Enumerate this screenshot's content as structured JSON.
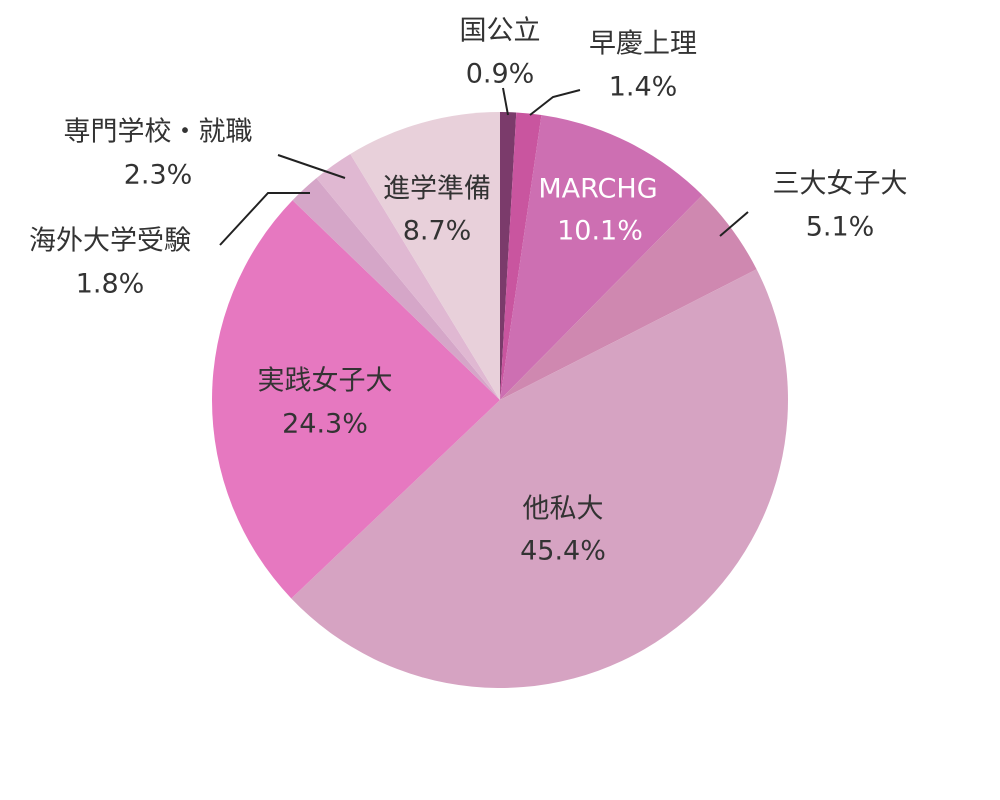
{
  "chart_data": {
    "type": "pie",
    "categories": [
      "国公立",
      "早慶上理",
      "MARCHG",
      "三大女子大",
      "他私大",
      "実践女子大",
      "海外大学受験",
      "専門学校・就職",
      "進学準備"
    ],
    "values": [
      0.9,
      1.4,
      10.1,
      5.1,
      45.4,
      24.3,
      1.8,
      2.3,
      8.7
    ],
    "value_labels": [
      "0.9%",
      "1.4%",
      "10.1%",
      "5.1%",
      "45.4%",
      "24.3%",
      "1.8%",
      "2.3%",
      "8.7%"
    ],
    "colors": [
      "#7b3b6b",
      "#c9559f",
      "#cd6fb2",
      "#cf88b0",
      "#d6a3c2",
      "#e678c0",
      "#d5a6c8",
      "#e0b8d2",
      "#e8d0da"
    ]
  }
}
